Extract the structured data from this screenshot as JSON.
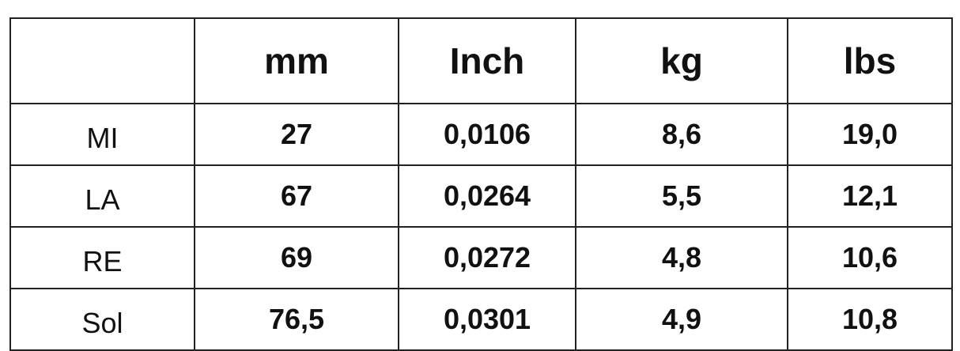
{
  "table": {
    "headers": [
      "",
      "mm",
      "Inch",
      "kg",
      "lbs"
    ],
    "rows": [
      {
        "label": "MI",
        "values": [
          "27",
          "0,0106",
          "8,6",
          "19,0"
        ]
      },
      {
        "label": "LA",
        "values": [
          "67",
          "0,0264",
          "5,5",
          "12,1"
        ]
      },
      {
        "label": "RE",
        "values": [
          "69",
          "0,0272",
          "4,8",
          "10,6"
        ]
      },
      {
        "label": "Sol",
        "values": [
          "76,5",
          "0,0301",
          "4,9",
          "10,8"
        ]
      }
    ]
  }
}
